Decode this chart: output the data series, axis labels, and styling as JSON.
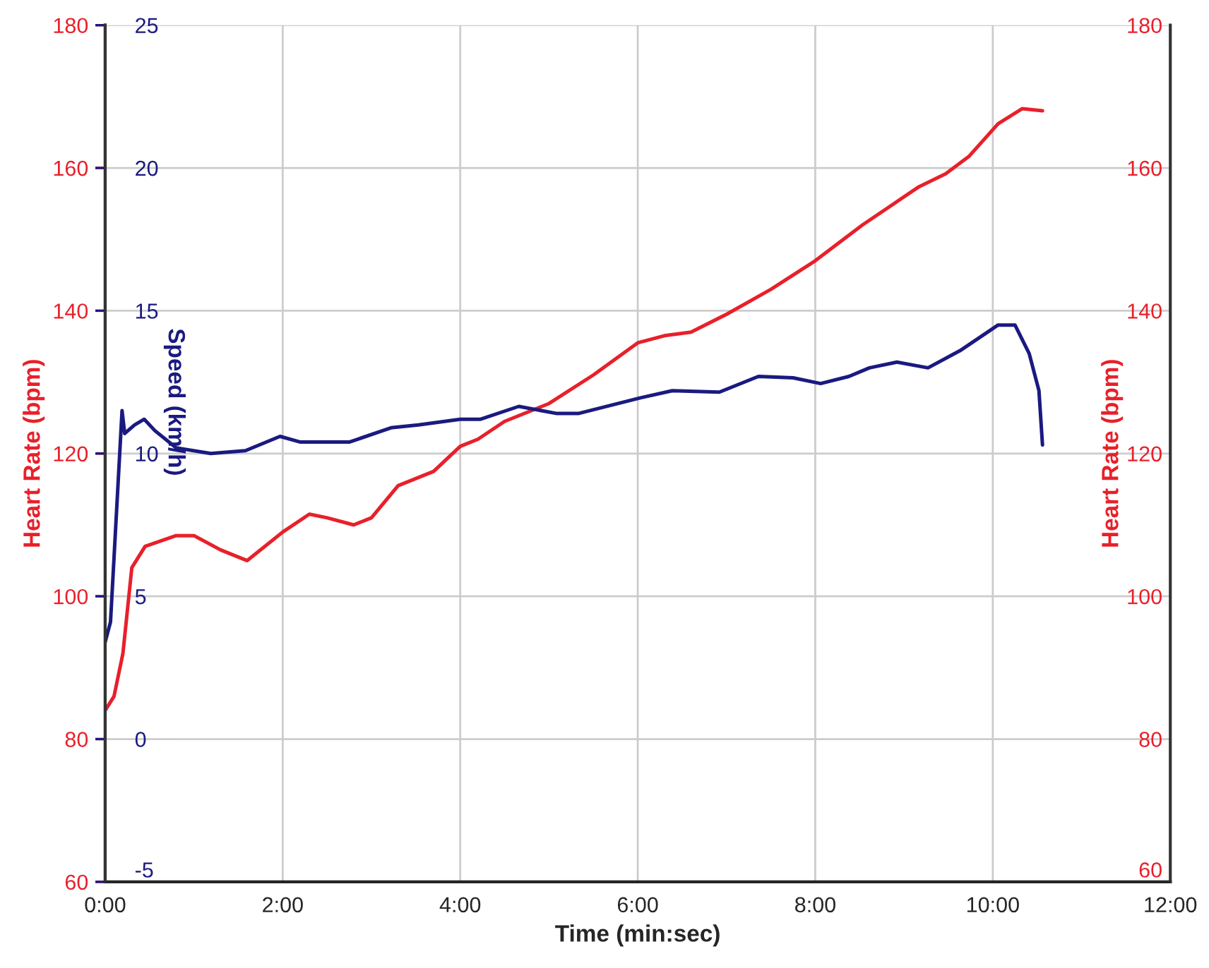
{
  "chart_data": {
    "type": "line",
    "xlabel": "Time (min:sec)",
    "ylabel": "Heart Rate (bpm)",
    "y2label": "Heart Rate (bpm)",
    "y3label": "Speed (km/h)",
    "xlim": [
      0,
      12
    ],
    "xticks": [
      {
        "value": 0,
        "label": "0:00"
      },
      {
        "value": 2,
        "label": "2:00"
      },
      {
        "value": 4,
        "label": "4:00"
      },
      {
        "value": 6,
        "label": "6:00"
      },
      {
        "value": 8,
        "label": "8:00"
      },
      {
        "value": 10,
        "label": "10:00"
      },
      {
        "value": 12,
        "label": "12:00"
      }
    ],
    "ylim": [
      60,
      180
    ],
    "yticks": [
      60,
      80,
      100,
      120,
      140,
      160,
      180
    ],
    "y2lim": [
      60,
      180
    ],
    "y2ticks": [
      60,
      80,
      100,
      120,
      140,
      160,
      180
    ],
    "y3lim": [
      -5,
      25
    ],
    "y3ticks": [
      -5,
      0,
      5,
      10,
      15,
      20,
      25
    ],
    "grid": true,
    "series": [
      {
        "color": "#e8202a",
        "axis": "y",
        "x": [
          0,
          0.1,
          0.2,
          0.3,
          0.45,
          0.8,
          1.0,
          1.3,
          1.6,
          2.0,
          2.3,
          2.5,
          2.8,
          3.0,
          3.3,
          3.7,
          4.0,
          4.2,
          4.5,
          5.0,
          5.5,
          6.0,
          6.3,
          6.6,
          7.0,
          7.5,
          8.0,
          8.53,
          9.16,
          9.47,
          9.73,
          10.06,
          10.33,
          10.56
        ],
        "values": [
          84,
          86,
          92,
          104,
          107,
          108.5,
          108.5,
          106.5,
          105,
          109,
          111.5,
          111,
          110,
          111,
          115.5,
          117.5,
          121,
          122,
          124.5,
          127,
          131,
          135.5,
          136.5,
          137,
          139.5,
          143,
          147,
          152,
          157.3,
          159.2,
          161.6,
          166.2,
          168.3,
          168
        ]
      },
      {
        "color": "#1a1a80",
        "axis": "y3",
        "x": [
          0,
          0.06,
          0.19,
          0.22,
          0.33,
          0.44,
          0.56,
          0.8,
          1.19,
          1.58,
          1.97,
          2.2,
          2.75,
          3.22,
          3.53,
          4.0,
          4.23,
          4.66,
          5.09,
          5.33,
          6.03,
          6.39,
          6.92,
          7.36,
          7.75,
          8.06,
          8.38,
          8.61,
          8.92,
          9.27,
          9.63,
          10.06,
          10.25,
          10.41,
          10.52,
          10.56
        ],
        "values": [
          3.4,
          4.1,
          11.5,
          10.7,
          11.0,
          11.2,
          10.8,
          10.2,
          10.0,
          10.1,
          10.6,
          10.4,
          10.4,
          10.9,
          11.0,
          11.2,
          11.2,
          11.65,
          11.4,
          11.4,
          11.95,
          12.2,
          12.15,
          12.7,
          12.65,
          12.45,
          12.7,
          13.0,
          13.2,
          13.0,
          13.6,
          14.5,
          14.5,
          13.5,
          12.2,
          10.3
        ]
      }
    ]
  }
}
